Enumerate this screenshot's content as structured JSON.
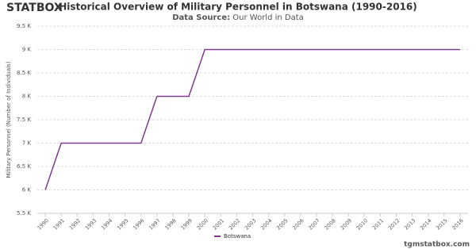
{
  "chart_data": {
    "type": "line",
    "logo": "STATBOX",
    "title": "Historical Overview of Military Personnel in Botswana (1990-2016)",
    "subtitle_label": "Data Source:",
    "subtitle": "Our World in Data",
    "y_label": "Military Personnel (Number of Individuals)",
    "categories": [
      "1990",
      "1991",
      "1992",
      "1993",
      "1994",
      "1995",
      "1996",
      "1997",
      "1998",
      "1999",
      "2000",
      "2001",
      "2002",
      "2003",
      "2004",
      "2005",
      "2006",
      "2007",
      "2008",
      "2009",
      "2010",
      "2011",
      "2012",
      "2013",
      "2014",
      "2015",
      "2016"
    ],
    "series": [
      {
        "name": "Botswana",
        "color": "#7d3c8c",
        "values": [
          6000,
          7000,
          7000,
          7000,
          7000,
          7000,
          7000,
          8000,
          8000,
          8000,
          9000,
          9000,
          9000,
          9000,
          9000,
          9000,
          9000,
          9000,
          9000,
          9000,
          9000,
          9000,
          9000,
          9000,
          9000,
          9000,
          9000
        ]
      }
    ],
    "ylim": [
      5500,
      9500
    ],
    "yticks": [
      {
        "value": 5500,
        "label": "5.5 K"
      },
      {
        "value": 6000,
        "label": "6 K"
      },
      {
        "value": 6500,
        "label": "6.5 K"
      },
      {
        "value": 7000,
        "label": "7 K"
      },
      {
        "value": 7500,
        "label": "7.5 K"
      },
      {
        "value": 8000,
        "label": "8 K"
      },
      {
        "value": 8500,
        "label": "8.5 K"
      },
      {
        "value": 9000,
        "label": "9 K"
      },
      {
        "value": 9500,
        "label": "9.5 K"
      }
    ],
    "grid": true,
    "legend": "bottom",
    "source": "tgmstatbox.com"
  }
}
